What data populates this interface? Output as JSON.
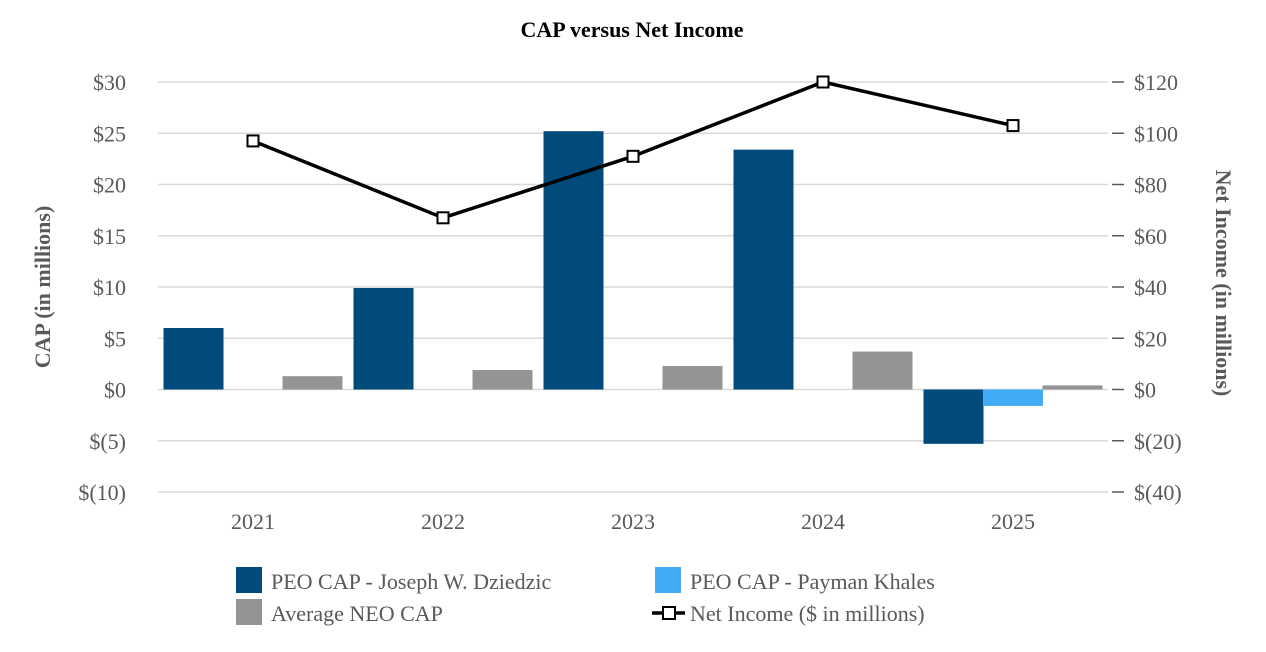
{
  "chart_data": {
    "type": "bar",
    "title": "CAP versus Net Income",
    "categories": [
      "2021",
      "2022",
      "2023",
      "2024",
      "2025"
    ],
    "ylabel": "CAP (in millions)",
    "ylabel_right": "Net Income (in millions)",
    "ylim": [
      -10,
      30
    ],
    "ylim_right": [
      -40,
      120
    ],
    "y_ticks": [
      -10,
      -5,
      0,
      5,
      10,
      15,
      20,
      25,
      30
    ],
    "y_tick_labels": [
      "$(10)",
      "$(5)",
      "$0",
      "$5",
      "$10",
      "$15",
      "$20",
      "$25",
      "$30"
    ],
    "y_right_ticks": [
      -40,
      -20,
      0,
      20,
      40,
      60,
      80,
      100,
      120
    ],
    "y_right_tick_labels": [
      "$(40)",
      "$(20)",
      "$0",
      "$20",
      "$40",
      "$60",
      "$80",
      "$100",
      "$120"
    ],
    "grid": true,
    "legend_position": "bottom",
    "series": [
      {
        "name": "PEO CAP - Joseph W. Dziedzic",
        "type": "bar",
        "axis": "left",
        "color": "#004A7C",
        "values": [
          6.0,
          9.9,
          25.2,
          23.4,
          -5.3
        ]
      },
      {
        "name": "PEO CAP - Payman Khales",
        "type": "bar",
        "axis": "left",
        "color": "#41ABF5",
        "values": [
          null,
          null,
          null,
          null,
          -1.6
        ]
      },
      {
        "name": "Average NEO CAP",
        "type": "bar",
        "axis": "left",
        "color": "#949494",
        "values": [
          1.3,
          1.9,
          2.3,
          3.7,
          0.4
        ]
      },
      {
        "name": "Net Income ($ in millions)",
        "type": "line",
        "axis": "right",
        "color": "#000000",
        "marker": "square",
        "values": [
          97,
          67,
          91,
          120,
          103
        ]
      }
    ],
    "legend_order": [
      "PEO CAP - Joseph W. Dziedzic",
      "PEO CAP - Payman Khales",
      "Average NEO CAP",
      "Net Income ($ in millions)"
    ]
  }
}
